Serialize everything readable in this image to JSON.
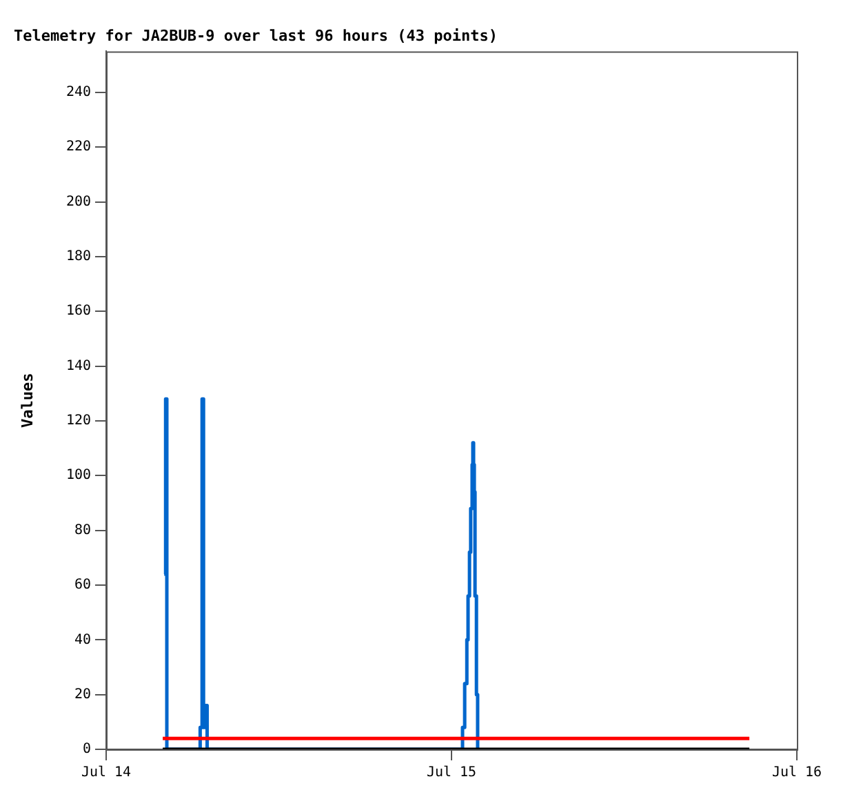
{
  "chart_data": {
    "type": "line",
    "title": "Telemetry for JA2BUB-9 over last 96 hours (43 points)",
    "ylabel": "Values",
    "xlim": [
      "--07-14",
      "--07-16"
    ],
    "xticks": [
      {
        "value": "--07-14",
        "label": "Jul 14"
      },
      {
        "value": "--07-15",
        "label": "Jul 15"
      },
      {
        "value": "--07-16",
        "label": "Jul 16"
      }
    ],
    "ylim": [
      0,
      255
    ],
    "yticks": [
      0,
      20,
      40,
      60,
      80,
      100,
      120,
      140,
      160,
      180,
      200,
      220,
      240
    ],
    "grid": false,
    "legend": false,
    "marker": "none",
    "series": [
      {
        "type": "line",
        "color": "#000000",
        "x": [
          "--07-14T03:56",
          "--07-15T20:42"
        ],
        "values": [
          0,
          0
        ]
      },
      {
        "type": "line",
        "color": "#ff0000",
        "x": [
          "--07-14T03:56",
          "--07-15T20:42"
        ],
        "values": [
          4,
          4
        ]
      },
      {
        "type": "step",
        "color": "#0066cc",
        "x": [
          "--07-14T04:02",
          "--07-14T04:08",
          "--07-14T04:13",
          "--07-14T06:32",
          "--07-14T06:40",
          "--07-14T06:46",
          "--07-14T06:55",
          "--07-14T07:01",
          "--07-15T00:46",
          "--07-15T00:55",
          "--07-15T01:04",
          "--07-15T01:09",
          "--07-15T01:15",
          "--07-15T01:20",
          "--07-15T01:26",
          "--07-15T01:29",
          "--07-15T01:32",
          "--07-15T01:35",
          "--07-15T01:38",
          "--07-15T01:44",
          "--07-15T01:49"
        ],
        "values": [
          64,
          128,
          0,
          8,
          128,
          8,
          16,
          0,
          8,
          24,
          40,
          56,
          72,
          88,
          104,
          112,
          104,
          94,
          56,
          20,
          0
        ]
      }
    ]
  }
}
